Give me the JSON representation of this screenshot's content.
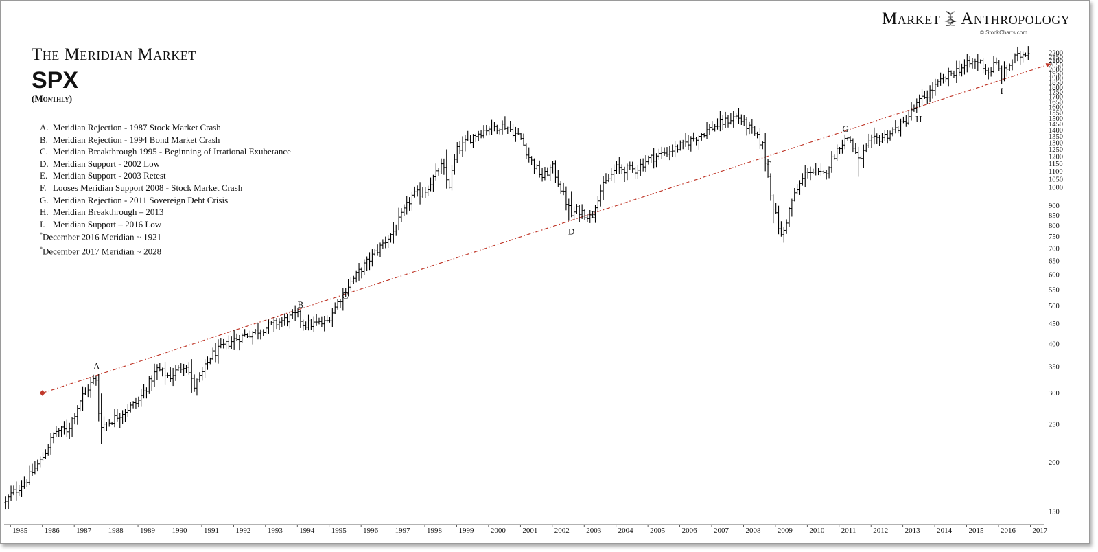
{
  "header": {
    "title_line1": "The Meridian Market",
    "title_line2": "SPX",
    "title_line3": "(Monthly)"
  },
  "brand": {
    "left_word": "Market",
    "right_word": "Anthropology",
    "credit": "© StockCharts.com",
    "logo_icon": "dna-helix-icon"
  },
  "legend": [
    {
      "key": "A.",
      "text": "Meridian Rejection - 1987 Stock Market Crash"
    },
    {
      "key": "B.",
      "text": "Meridian Rejection - 1994 Bond Market Crash"
    },
    {
      "key": "C.",
      "text": "Meridian Breakthrough 1995 - Beginning of Irrational Exuberance"
    },
    {
      "key": "D.",
      "text": "Meridian Support - 2002 Low"
    },
    {
      "key": "E.",
      "text": "Meridian Support - 2003 Retest"
    },
    {
      "key": "F.",
      "text": "Looses Meridian Support 2008 - Stock Market Crash"
    },
    {
      "key": "G.",
      "text": "Meridian Rejection - 2011 Sovereign Debt Crisis"
    },
    {
      "key": "H.",
      "text": "Meridian Breakthrough – 2013"
    },
    {
      "key": "I.",
      "text": "Meridian Support – 2016 Low"
    }
  ],
  "notes": [
    {
      "mark": "*",
      "text": "December 2016 Meridian ~ 1921"
    },
    {
      "mark": "*",
      "text": "December 2017 Meridian ~ 2028"
    }
  ],
  "colors": {
    "trendline": "#c0392b",
    "bars": "#000000"
  },
  "chart_data": {
    "type": "line",
    "series_style": "monthly OHLC bars",
    "y_scale": "log",
    "ylim": [
      140,
      2300
    ],
    "xlim": [
      1984.8,
      2017.4
    ],
    "y_ticks": [
      150,
      200,
      250,
      300,
      350,
      400,
      450,
      500,
      550,
      600,
      650,
      700,
      750,
      800,
      850,
      900,
      1000,
      1050,
      1100,
      1150,
      1200,
      1250,
      1300,
      1350,
      1400,
      1450,
      1500,
      1550,
      1600,
      1650,
      1700,
      1750,
      1800,
      1850,
      1900,
      1950,
      2000,
      2050,
      2100,
      2150,
      2200
    ],
    "x_ticks": [
      "1985",
      "1986",
      "1987",
      "1988",
      "1989",
      "1990",
      "1991",
      "1992",
      "1993",
      "1994",
      "1995",
      "1996",
      "1997",
      "1998",
      "1999",
      "2000",
      "2001",
      "2002",
      "2003",
      "2004",
      "2005",
      "2006",
      "2007",
      "2008",
      "2009",
      "2010",
      "2011",
      "2012",
      "2013",
      "2014",
      "2015",
      "2016",
      "2017"
    ],
    "trendline": {
      "x": [
        1986.0,
        2016.75
      ],
      "y": [
        300,
        1955
      ]
    },
    "annotations": [
      {
        "label": "A",
        "x": 1987.7,
        "y": 345
      },
      {
        "label": "B",
        "x": 1994.1,
        "y": 495
      },
      {
        "label": "C",
        "x": 1995.5,
        "y": 522
      },
      {
        "label": "D",
        "x": 2002.6,
        "y": 760
      },
      {
        "label": "E",
        "x": 2003.3,
        "y": 840
      },
      {
        "label": "F",
        "x": 2008.8,
        "y": 1145
      },
      {
        "label": "G",
        "x": 2011.2,
        "y": 1385
      },
      {
        "label": "H",
        "x": 2013.5,
        "y": 1470
      },
      {
        "label": "I",
        "x": 2016.1,
        "y": 1730
      }
    ],
    "anchors": [
      [
        1984.85,
        158
      ],
      [
        1985.0,
        165
      ],
      [
        1985.5,
        180
      ],
      [
        1986.0,
        205
      ],
      [
        1986.4,
        240
      ],
      [
        1986.8,
        242
      ],
      [
        1987.2,
        290
      ],
      [
        1987.67,
        330
      ],
      [
        1987.8,
        250
      ],
      [
        1988.0,
        250
      ],
      [
        1988.5,
        268
      ],
      [
        1989.0,
        285
      ],
      [
        1989.6,
        345
      ],
      [
        1990.0,
        330
      ],
      [
        1990.5,
        358
      ],
      [
        1990.75,
        310
      ],
      [
        1991.0,
        335
      ],
      [
        1991.3,
        375
      ],
      [
        1992.0,
        410
      ],
      [
        1993.0,
        440
      ],
      [
        1994.0,
        475
      ],
      [
        1994.2,
        448
      ],
      [
        1994.9,
        452
      ],
      [
        1995.5,
        550
      ],
      [
        1996.0,
        620
      ],
      [
        1997.0,
        770
      ],
      [
        1997.6,
        950
      ],
      [
        1998.0,
        980
      ],
      [
        1998.55,
        1140
      ],
      [
        1998.75,
        1000
      ],
      [
        1999.0,
        1240
      ],
      [
        1999.5,
        1350
      ],
      [
        2000.0,
        1420
      ],
      [
        2000.5,
        1440
      ],
      [
        2000.75,
        1390
      ],
      [
        2001.0,
        1340
      ],
      [
        2001.3,
        1180
      ],
      [
        2001.7,
        1060
      ],
      [
        2002.0,
        1130
      ],
      [
        2002.6,
        850
      ],
      [
        2002.8,
        880
      ],
      [
        2003.2,
        840
      ],
      [
        2003.5,
        980
      ],
      [
        2004.0,
        1120
      ],
      [
        2004.6,
        1110
      ],
      [
        2005.0,
        1180
      ],
      [
        2006.0,
        1270
      ],
      [
        2007.0,
        1420
      ],
      [
        2007.8,
        1520
      ],
      [
        2008.3,
        1380
      ],
      [
        2008.6,
        1280
      ],
      [
        2008.9,
        920
      ],
      [
        2009.2,
        740
      ],
      [
        2009.5,
        920
      ],
      [
        2010.0,
        1110
      ],
      [
        2010.5,
        1070
      ],
      [
        2011.0,
        1280
      ],
      [
        2011.3,
        1350
      ],
      [
        2011.6,
        1170
      ],
      [
        2012.0,
        1310
      ],
      [
        2012.5,
        1360
      ],
      [
        2013.0,
        1450
      ],
      [
        2013.5,
        1650
      ],
      [
        2014.0,
        1800
      ],
      [
        2014.5,
        1950
      ],
      [
        2015.0,
        2050
      ],
      [
        2015.4,
        2100
      ],
      [
        2015.7,
        1950
      ],
      [
        2015.9,
        2080
      ],
      [
        2016.1,
        1930
      ],
      [
        2016.5,
        2130
      ],
      [
        2016.8,
        2190
      ],
      [
        2016.95,
        2240
      ]
    ]
  }
}
